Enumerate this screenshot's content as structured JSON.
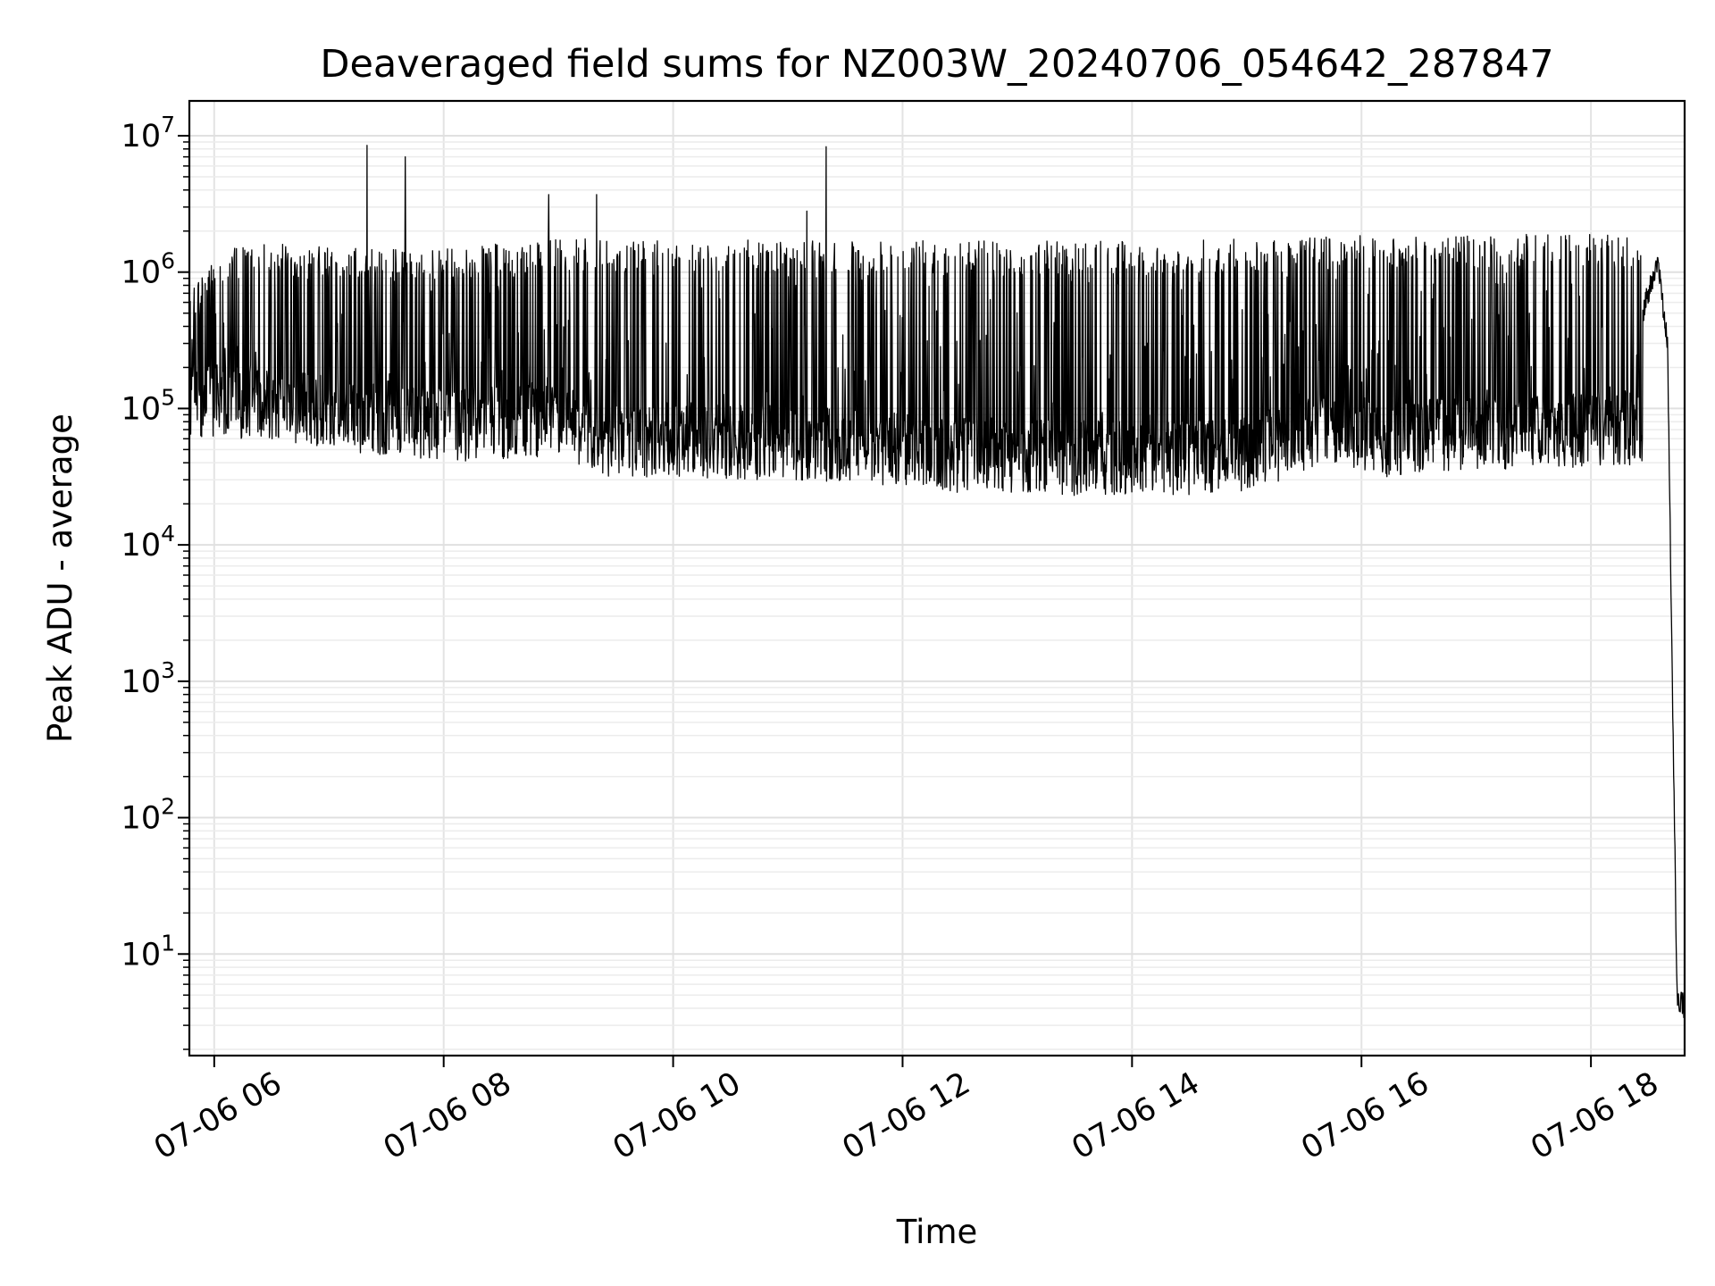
{
  "chart_data": {
    "type": "line",
    "title": "Deaveraged field sums for NZ003W_20240706_054642_287847",
    "xlabel": "Time",
    "ylabel": "Peak ADU - average",
    "xlim": [
      "2024-07-06 05:47",
      "2024-07-06 18:49"
    ],
    "ylim": [
      1.8,
      18000000
    ],
    "yscale": "log",
    "grid": true,
    "line_color": "#000000",
    "x_ticks": [
      {
        "time": "2024-07-06 06:00",
        "label": "07-06 06"
      },
      {
        "time": "2024-07-06 08:00",
        "label": "07-06 08"
      },
      {
        "time": "2024-07-06 10:00",
        "label": "07-06 10"
      },
      {
        "time": "2024-07-06 12:00",
        "label": "07-06 12"
      },
      {
        "time": "2024-07-06 14:00",
        "label": "07-06 14"
      },
      {
        "time": "2024-07-06 16:00",
        "label": "07-06 16"
      },
      {
        "time": "2024-07-06 18:00",
        "label": "07-06 18"
      }
    ],
    "y_ticks": [
      {
        "value": 10,
        "base": "10",
        "exp": "1"
      },
      {
        "value": 100,
        "base": "10",
        "exp": "2"
      },
      {
        "value": 1000,
        "base": "10",
        "exp": "3"
      },
      {
        "value": 10000,
        "base": "10",
        "exp": "4"
      },
      {
        "value": 100000,
        "base": "10",
        "exp": "5"
      },
      {
        "value": 1000000,
        "base": "10",
        "exp": "6"
      },
      {
        "value": 10000000,
        "base": "10",
        "exp": "7"
      }
    ],
    "series": [
      {
        "x": [
          "2024-07-06 05:47",
          "2024-07-06 05:55",
          "2024-07-06 06:00",
          "2024-07-06 06:05",
          "2024-07-06 06:15",
          "2024-07-06 06:30",
          "2024-07-06 06:45",
          "2024-07-06 07:00",
          "2024-07-06 07:15",
          "2024-07-06 07:20",
          "2024-07-06 07:25",
          "2024-07-06 07:35",
          "2024-07-06 07:40",
          "2024-07-06 07:45",
          "2024-07-06 08:00",
          "2024-07-06 08:30",
          "2024-07-06 08:45",
          "2024-07-06 08:55",
          "2024-07-06 09:00",
          "2024-07-06 09:15",
          "2024-07-06 09:20",
          "2024-07-06 09:30",
          "2024-07-06 10:00",
          "2024-07-06 10:30",
          "2024-07-06 11:00",
          "2024-07-06 11:10",
          "2024-07-06 11:15",
          "2024-07-06 11:20",
          "2024-07-06 11:25",
          "2024-07-06 11:30",
          "2024-07-06 12:00",
          "2024-07-06 12:30",
          "2024-07-06 13:00",
          "2024-07-06 13:30",
          "2024-07-06 14:00",
          "2024-07-06 14:30",
          "2024-07-06 15:00",
          "2024-07-06 15:20",
          "2024-07-06 15:30",
          "2024-07-06 16:00",
          "2024-07-06 16:30",
          "2024-07-06 17:00",
          "2024-07-06 17:30",
          "2024-07-06 18:00",
          "2024-07-06 18:10",
          "2024-07-06 18:25",
          "2024-07-06 18:35",
          "2024-07-06 18:40",
          "2024-07-06 18:45",
          "2024-07-06 18:49"
        ],
        "y": [
          400000,
          380000,
          400000,
          1100000,
          700000,
          150000,
          120000,
          100000,
          90000,
          8500000,
          80000,
          70000,
          7000000,
          75000,
          70000,
          60000,
          150000,
          3700000,
          60000,
          65000,
          3700000,
          60000,
          55000,
          55000,
          50000,
          2800000,
          45000,
          8300000,
          40000,
          42000,
          40000,
          35000,
          32000,
          32000,
          33000,
          34000,
          35000,
          35000,
          80000,
          90000,
          100000,
          90000,
          55000,
          50000,
          55000,
          400000,
          1200000,
          300000,
          5,
          4
        ]
      },
      {
        "x": [
          "2024-07-06 05:47",
          "2024-07-06 06:00",
          "2024-07-06 06:10",
          "2024-07-06 06:30",
          "2024-07-06 07:00",
          "2024-07-06 07:30",
          "2024-07-06 08:00",
          "2024-07-06 08:30",
          "2024-07-06 09:00",
          "2024-07-06 09:30",
          "2024-07-06 10:00",
          "2024-07-06 10:30",
          "2024-07-06 11:00",
          "2024-07-06 11:30",
          "2024-07-06 12:00",
          "2024-07-06 12:30",
          "2024-07-06 13:00",
          "2024-07-06 13:30",
          "2024-07-06 14:00",
          "2024-07-06 14:30",
          "2024-07-06 15:00",
          "2024-07-06 15:30",
          "2024-07-06 16:00",
          "2024-07-06 16:30",
          "2024-07-06 17:00",
          "2024-07-06 17:30",
          "2024-07-06 18:00",
          "2024-07-06 18:25"
        ],
        "y": [
          600000,
          1000000,
          1200000,
          1300000,
          1200000,
          1200000,
          1200000,
          1300000,
          1400000,
          1400000,
          1400000,
          1400000,
          1400000,
          1400000,
          1350000,
          1350000,
          1350000,
          1350000,
          1350000,
          1350000,
          1400000,
          1500000,
          1500000,
          1500000,
          1500000,
          1500000,
          1500000,
          1500000
        ]
      },
      {
        "x": [
          "2024-07-06 06:30",
          "2024-07-06 07:00",
          "2024-07-06 07:30",
          "2024-07-06 08:00",
          "2024-07-06 08:30",
          "2024-07-06 09:00",
          "2024-07-06 09:30",
          "2024-07-06 10:00",
          "2024-07-06 10:30",
          "2024-07-06 11:00",
          "2024-07-06 11:30",
          "2024-07-06 12:00",
          "2024-07-06 12:30",
          "2024-07-06 13:00",
          "2024-07-06 13:30",
          "2024-07-06 14:00",
          "2024-07-06 14:30",
          "2024-07-06 15:00",
          "2024-07-06 15:20",
          "2024-07-06 15:45",
          "2024-07-06 16:15",
          "2024-07-06 16:40",
          "2024-07-06 17:00",
          "2024-07-06 17:30",
          "2024-07-06 18:00",
          "2024-07-06 18:10"
        ],
        "y": [
          60000,
          50000,
          45000,
          40000,
          42000,
          45000,
          30000,
          32000,
          30000,
          30000,
          28000,
          26000,
          24000,
          24000,
          23000,
          23000,
          23000,
          25000,
          30000,
          40000,
          30000,
          35000,
          35000,
          35000,
          37000,
          38000
        ]
      }
    ]
  }
}
